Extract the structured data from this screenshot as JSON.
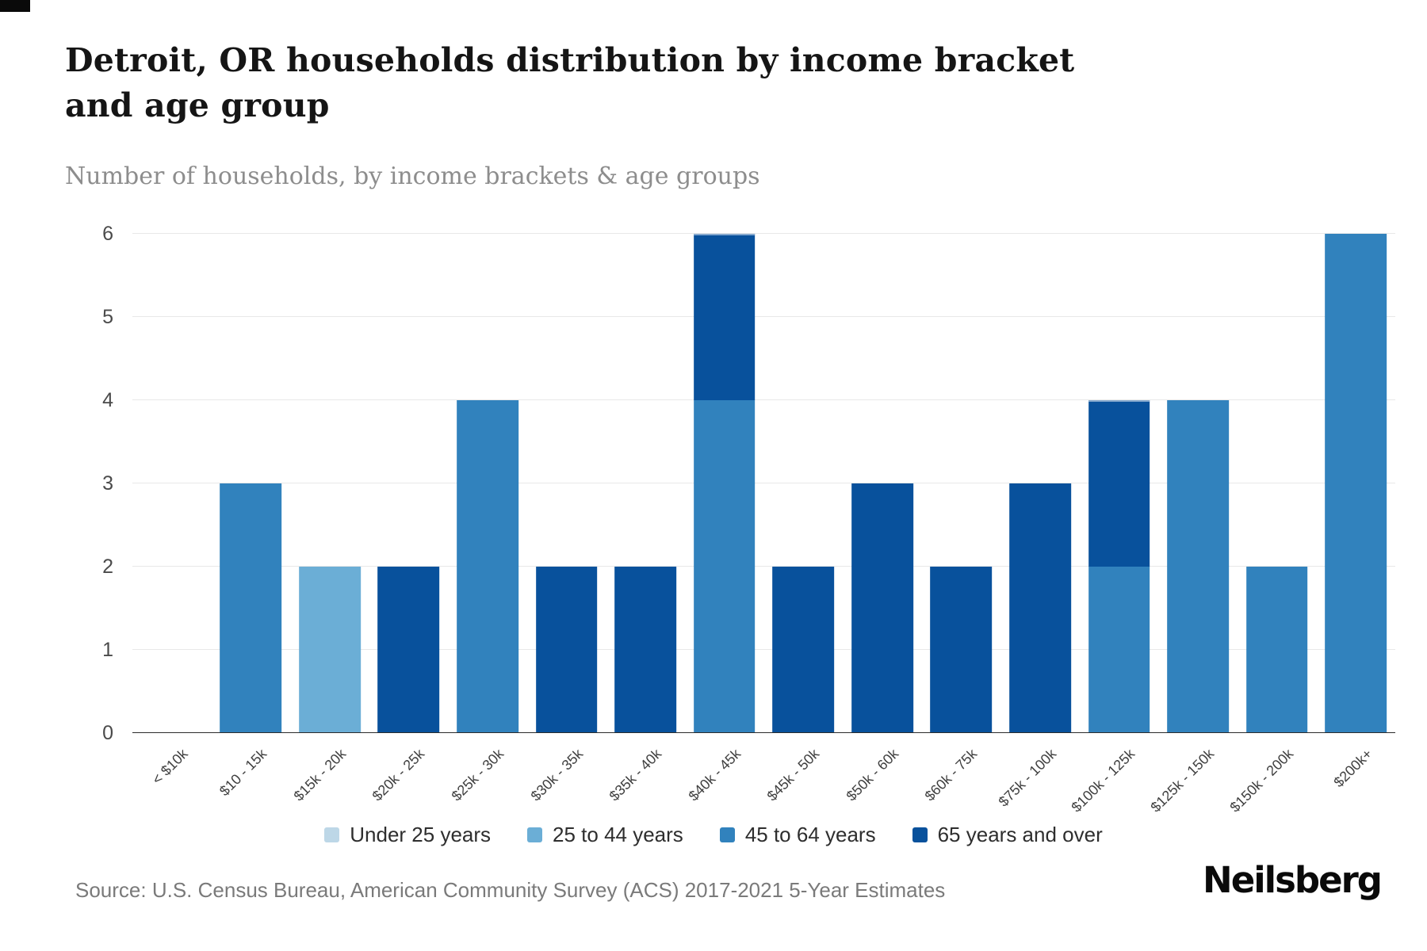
{
  "header": {
    "title": "Detroit, OR households distribution by income bracket and age group",
    "subtitle": "Number of households, by income brackets & age groups"
  },
  "chart_data": {
    "type": "bar",
    "stacked": true,
    "title": "Detroit, OR households distribution by income bracket and age group",
    "subtitle": "Number of households, by income brackets & age groups",
    "xlabel": "",
    "ylabel": "",
    "ylim": [
      0,
      6
    ],
    "yticks": [
      0,
      1,
      2,
      3,
      4,
      5,
      6
    ],
    "grid": true,
    "legend_position": "bottom",
    "categories": [
      "< $10k",
      "$10 - 15k",
      "$15k - 20k",
      "$20k - 25k",
      "$25k - 30k",
      "$30k - 35k",
      "$35k - 40k",
      "$40k - 45k",
      "$45k - 50k",
      "$50k - 60k",
      "$60k - 75k",
      "$75k - 100k",
      "$100k - 125k",
      "$125k - 150k",
      "$150k - 200k",
      "$200k+"
    ],
    "series": [
      {
        "name": "Under 25 years",
        "color": "#bdd7e7",
        "values": [
          0,
          0,
          0,
          0,
          0,
          0,
          0,
          0,
          0,
          0,
          0,
          0,
          0,
          0,
          0,
          0
        ]
      },
      {
        "name": "25 to 44 years",
        "color": "#6baed6",
        "values": [
          0,
          0,
          2,
          0,
          0,
          0,
          0,
          0,
          0,
          0,
          0,
          0,
          0,
          0,
          0,
          0
        ]
      },
      {
        "name": "45 to 64 years",
        "color": "#3182bd",
        "values": [
          0,
          3,
          0,
          0,
          4,
          0,
          0,
          4,
          0,
          0,
          0,
          0,
          2,
          4,
          2,
          6
        ]
      },
      {
        "name": "65 years and over",
        "color": "#08519c",
        "values": [
          0,
          0,
          0,
          2,
          0,
          2,
          2,
          2,
          2,
          3,
          2,
          3,
          2,
          0,
          0,
          0
        ]
      }
    ]
  },
  "footer": {
    "source": "Source: U.S. Census Bureau, American Community Survey (ACS) 2017-2021 5-Year Estimates",
    "brand": "Neilsberg"
  }
}
